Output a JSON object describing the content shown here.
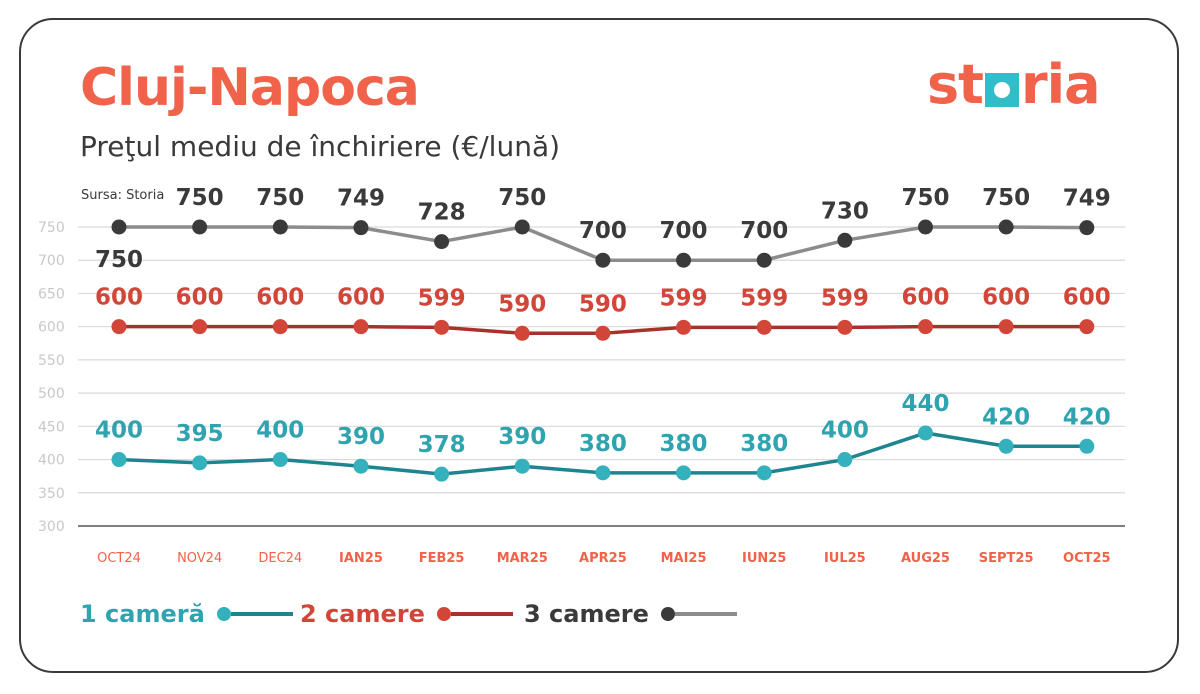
{
  "header": {
    "title": "Cluj-Napoca",
    "subtitle": "Preţul mediu de închiriere (€/lună)",
    "source": "Sursa: Storia",
    "logo_text": "storia"
  },
  "colors": {
    "accent": "#f0624a",
    "series_1": "#2fa3b0",
    "series_2": "#d2463a",
    "series_3": "#3a3a3a",
    "grid": "#d9d9d9",
    "axis_label": "#c8c8c8"
  },
  "chart_data": {
    "type": "line",
    "title": "Preţul mediu de închiriere (€/lună)",
    "xlabel": "",
    "ylabel": "",
    "ylim": [
      300,
      750
    ],
    "yticks": [
      300,
      350,
      400,
      450,
      500,
      550,
      600,
      650,
      700,
      750
    ],
    "grid": true,
    "legend_placement": "bottom-left",
    "categories": [
      "OCT24",
      "NOV24",
      "DEC24",
      "IAN25",
      "FEB25",
      "MAR25",
      "APR25",
      "MAI25",
      "IUN25",
      "IUL25",
      "AUG25",
      "SEPT25",
      "OCT25"
    ],
    "series": [
      {
        "name": "1 cameră",
        "color": "#2fa3b0",
        "line_color": "#1e8590",
        "dot_color": "#35b0bd",
        "values": [
          400,
          395,
          400,
          390,
          378,
          390,
          380,
          380,
          380,
          400,
          440,
          420,
          420
        ]
      },
      {
        "name": "2 camere",
        "color": "#d2463a",
        "line_color": "#a8322b",
        "dot_color": "#d2463a",
        "values": [
          600,
          600,
          600,
          600,
          599,
          590,
          590,
          599,
          599,
          599,
          600,
          600,
          600
        ]
      },
      {
        "name": "3 camere",
        "color": "#3a3a3a",
        "line_color": "#8c8c8c",
        "dot_color": "#3a3a3a",
        "values": [
          750,
          750,
          750,
          749,
          728,
          750,
          700,
          700,
          700,
          730,
          750,
          750,
          749
        ]
      }
    ]
  }
}
